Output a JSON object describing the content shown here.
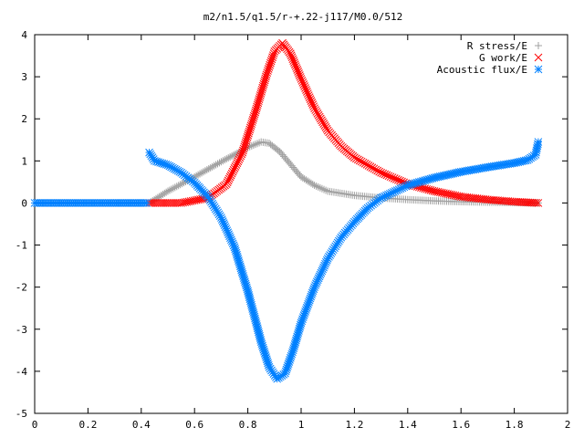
{
  "chart_data": {
    "type": "scatter",
    "title": "m2/n1.5/q1.5/r-+.22-j117/M0.0/512",
    "xlabel": "",
    "ylabel": "",
    "xlim": [
      0,
      2
    ],
    "ylim": [
      -5,
      4
    ],
    "x_ticks": [
      "0",
      "0.2",
      "0.4",
      "0.6",
      "0.8",
      "1",
      "1.2",
      "1.4",
      "1.6",
      "1.8",
      "2"
    ],
    "y_ticks": [
      "-5",
      "-4",
      "-3",
      "-2",
      "-1",
      "0",
      "1",
      "2",
      "3",
      "4"
    ],
    "grid": false,
    "legend_position": "top-right",
    "series": [
      {
        "name": "R stress/E",
        "marker": "plus",
        "color": "#a0a0a0",
        "points": [
          [
            0.43,
            0.0
          ],
          [
            0.5,
            0.28
          ],
          [
            0.6,
            0.62
          ],
          [
            0.7,
            0.98
          ],
          [
            0.8,
            1.32
          ],
          [
            0.85,
            1.45
          ],
          [
            0.88,
            1.42
          ],
          [
            0.92,
            1.22
          ],
          [
            0.96,
            0.92
          ],
          [
            1.0,
            0.62
          ],
          [
            1.05,
            0.42
          ],
          [
            1.1,
            0.28
          ],
          [
            1.2,
            0.18
          ],
          [
            1.3,
            0.12
          ],
          [
            1.4,
            0.08
          ],
          [
            1.5,
            0.05
          ],
          [
            1.6,
            0.03
          ],
          [
            1.7,
            0.02
          ],
          [
            1.8,
            0.01
          ],
          [
            1.89,
            0.0
          ]
        ]
      },
      {
        "name": "G work/E",
        "marker": "cross",
        "color": "#ff0000",
        "points": [
          [
            0.43,
            0.0
          ],
          [
            0.55,
            0.0
          ],
          [
            0.65,
            0.12
          ],
          [
            0.72,
            0.45
          ],
          [
            0.78,
            1.2
          ],
          [
            0.83,
            2.2
          ],
          [
            0.87,
            3.05
          ],
          [
            0.9,
            3.6
          ],
          [
            0.93,
            3.8
          ],
          [
            0.96,
            3.55
          ],
          [
            1.0,
            2.95
          ],
          [
            1.05,
            2.25
          ],
          [
            1.1,
            1.72
          ],
          [
            1.15,
            1.35
          ],
          [
            1.2,
            1.08
          ],
          [
            1.3,
            0.72
          ],
          [
            1.4,
            0.45
          ],
          [
            1.5,
            0.28
          ],
          [
            1.6,
            0.15
          ],
          [
            1.7,
            0.08
          ],
          [
            1.8,
            0.03
          ],
          [
            1.89,
            0.0
          ]
        ]
      },
      {
        "name": "Acoustic flux/E",
        "marker": "star",
        "color": "#0080ff",
        "points": [
          [
            0.0,
            0.0
          ],
          [
            0.1,
            0.0
          ],
          [
            0.2,
            0.0
          ],
          [
            0.3,
            0.0
          ],
          [
            0.42,
            0.0
          ],
          [
            0.43,
            1.2
          ],
          [
            0.45,
            1.0
          ],
          [
            0.5,
            0.9
          ],
          [
            0.55,
            0.72
          ],
          [
            0.6,
            0.48
          ],
          [
            0.65,
            0.15
          ],
          [
            0.7,
            -0.35
          ],
          [
            0.75,
            -1.05
          ],
          [
            0.8,
            -2.1
          ],
          [
            0.85,
            -3.3
          ],
          [
            0.88,
            -3.9
          ],
          [
            0.91,
            -4.18
          ],
          [
            0.94,
            -4.05
          ],
          [
            0.97,
            -3.5
          ],
          [
            1.0,
            -2.85
          ],
          [
            1.05,
            -2.0
          ],
          [
            1.1,
            -1.32
          ],
          [
            1.15,
            -0.82
          ],
          [
            1.2,
            -0.45
          ],
          [
            1.25,
            -0.12
          ],
          [
            1.3,
            0.12
          ],
          [
            1.4,
            0.42
          ],
          [
            1.5,
            0.6
          ],
          [
            1.6,
            0.74
          ],
          [
            1.7,
            0.85
          ],
          [
            1.8,
            0.95
          ],
          [
            1.85,
            1.02
          ],
          [
            1.88,
            1.15
          ],
          [
            1.89,
            1.45
          ]
        ]
      }
    ]
  }
}
